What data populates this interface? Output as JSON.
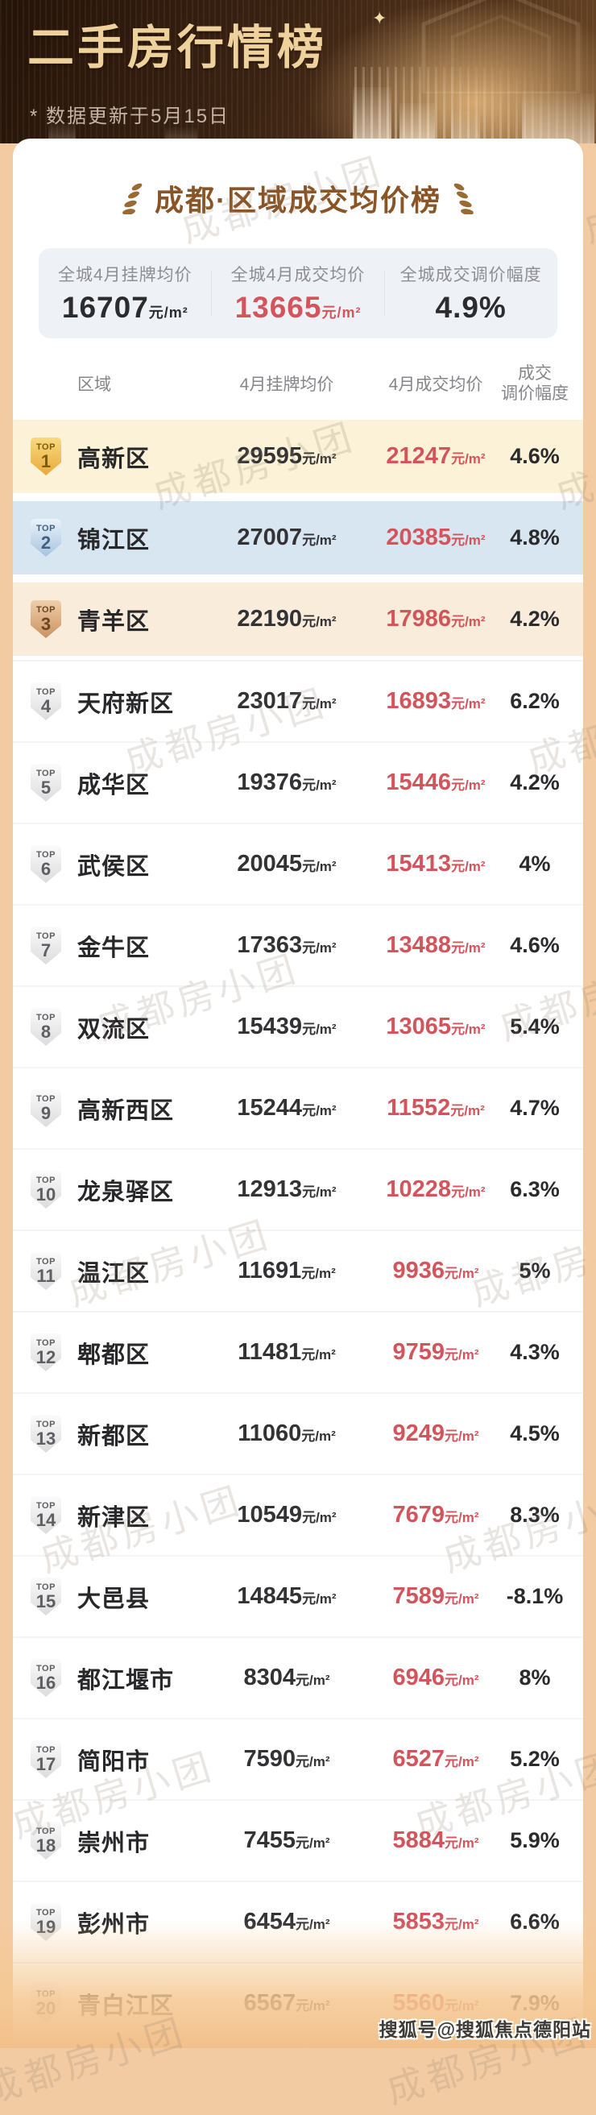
{
  "header": {
    "title": "二手房行情榜",
    "subtitle": "* 数据更新于5月15日",
    "sparkle_icon": "✦"
  },
  "card": {
    "title": "成都·区域成交均价榜",
    "summary": {
      "items": [
        {
          "label": "全城4月挂牌均价",
          "value": "16707",
          "unit": "元/m²",
          "tone": "dark"
        },
        {
          "label": "全城4月成交均价",
          "value": "13665",
          "unit": "元/m²",
          "tone": "red"
        },
        {
          "label": "全城成交调价幅度",
          "value": "4.9%",
          "unit": "",
          "tone": "dark"
        }
      ]
    },
    "table": {
      "columns": {
        "region": "区域",
        "listing": "4月挂牌均价",
        "deal": "4月成交均价",
        "pct_line1": "成交",
        "pct_line2": "调价幅度"
      },
      "badge_label": "TOP",
      "unit": "元/m²",
      "rows": [
        {
          "rank": 1,
          "district": "高新区",
          "listing": "29595",
          "deal": "21247",
          "pct": "4.6%"
        },
        {
          "rank": 2,
          "district": "锦江区",
          "listing": "27007",
          "deal": "20385",
          "pct": "4.8%"
        },
        {
          "rank": 3,
          "district": "青羊区",
          "listing": "22190",
          "deal": "17986",
          "pct": "4.2%"
        },
        {
          "rank": 4,
          "district": "天府新区",
          "listing": "23017",
          "deal": "16893",
          "pct": "6.2%"
        },
        {
          "rank": 5,
          "district": "成华区",
          "listing": "19376",
          "deal": "15446",
          "pct": "4.2%"
        },
        {
          "rank": 6,
          "district": "武侯区",
          "listing": "20045",
          "deal": "15413",
          "pct": "4%"
        },
        {
          "rank": 7,
          "district": "金牛区",
          "listing": "17363",
          "deal": "13488",
          "pct": "4.6%"
        },
        {
          "rank": 8,
          "district": "双流区",
          "listing": "15439",
          "deal": "13065",
          "pct": "5.4%"
        },
        {
          "rank": 9,
          "district": "高新西区",
          "listing": "15244",
          "deal": "11552",
          "pct": "4.7%"
        },
        {
          "rank": 10,
          "district": "龙泉驿区",
          "listing": "12913",
          "deal": "10228",
          "pct": "6.3%"
        },
        {
          "rank": 11,
          "district": "温江区",
          "listing": "11691",
          "deal": "9936",
          "pct": "5%"
        },
        {
          "rank": 12,
          "district": "郫都区",
          "listing": "11481",
          "deal": "9759",
          "pct": "4.3%"
        },
        {
          "rank": 13,
          "district": "新都区",
          "listing": "11060",
          "deal": "9249",
          "pct": "4.5%"
        },
        {
          "rank": 14,
          "district": "新津区",
          "listing": "10549",
          "deal": "7679",
          "pct": "8.3%"
        },
        {
          "rank": 15,
          "district": "大邑县",
          "listing": "14845",
          "deal": "7589",
          "pct": "-8.1%"
        },
        {
          "rank": 16,
          "district": "都江堰市",
          "listing": "8304",
          "deal": "6946",
          "pct": "8%"
        },
        {
          "rank": 17,
          "district": "简阳市",
          "listing": "7590",
          "deal": "6527",
          "pct": "5.2%"
        },
        {
          "rank": 18,
          "district": "崇州市",
          "listing": "7455",
          "deal": "5884",
          "pct": "5.9%"
        },
        {
          "rank": 19,
          "district": "彭州市",
          "listing": "6454",
          "deal": "5853",
          "pct": "6.6%"
        },
        {
          "rank": 20,
          "district": "青白江区",
          "listing": "6567",
          "deal": "5560",
          "pct": "7.9%"
        }
      ]
    }
  },
  "watermark": {
    "tile": "成都房小团",
    "footer": "搜狐号@搜狐焦点德阳站"
  },
  "colors": {
    "header_gold": "#EFD29B",
    "title_brown": "#8A5526",
    "price_red": "#D4545C",
    "peach_background": "#F3CBA2"
  }
}
